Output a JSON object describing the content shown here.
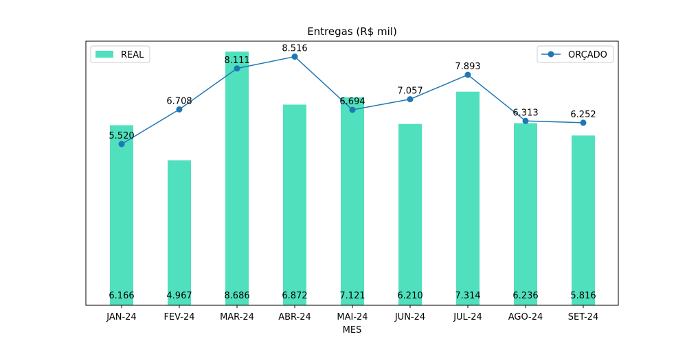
{
  "chart_data": {
    "type": "bar",
    "title": "Entregas (R$ mil)",
    "xlabel": "MES",
    "ylabel": "",
    "categories": [
      "JAN-24",
      "FEV-24",
      "MAR-24",
      "ABR-24",
      "MAI-24",
      "JUN-24",
      "JUL-24",
      "AGO-24",
      "SET-24"
    ],
    "series": [
      {
        "name": "REAL",
        "type": "bar",
        "color": "#50e0bd",
        "values": [
          6166,
          4967,
          8686,
          6872,
          7121,
          6210,
          7314,
          6236,
          5816
        ],
        "labels": [
          "6.166",
          "4.967",
          "8.686",
          "6.872",
          "7.121",
          "6.210",
          "7.314",
          "6.236",
          "5.816"
        ]
      },
      {
        "name": "ORÇADO",
        "type": "line",
        "color": "#1f77b4",
        "values": [
          5520,
          6708,
          8111,
          8516,
          6694,
          7057,
          7893,
          6313,
          6252
        ],
        "labels": [
          "5.520",
          "6.708",
          "8.111",
          "8.516",
          "6.694",
          "7.057",
          "7.893",
          "6.313",
          "6.252"
        ]
      }
    ],
    "ylim": [
      0,
      9045
    ],
    "y_ticks_visible": false,
    "grid": false,
    "legends": [
      {
        "series": "REAL",
        "placement": "top-left"
      },
      {
        "series": "ORÇADO",
        "placement": "top-right"
      }
    ]
  }
}
